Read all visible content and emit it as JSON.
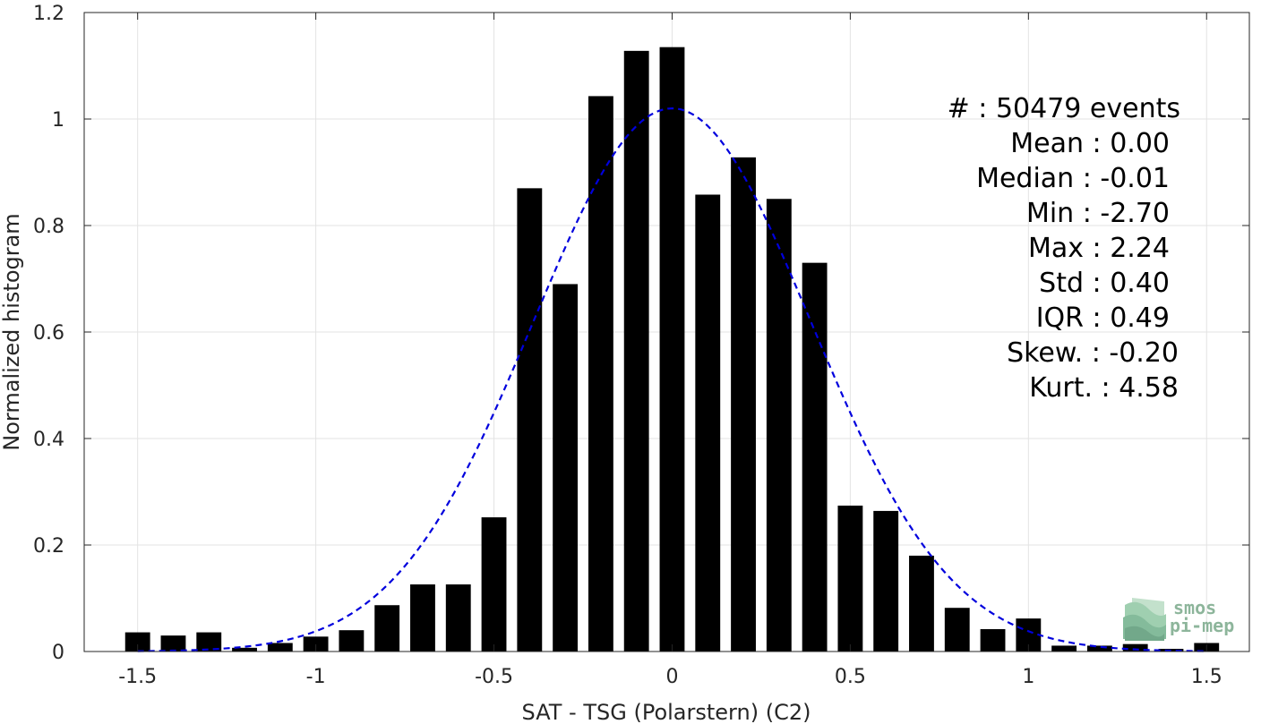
{
  "chart_data": {
    "type": "bar",
    "xlabel": "SAT - TSG (Polarstern) (C2)",
    "ylabel": "Normalized histogram",
    "xlim": [
      -1.65,
      1.62
    ],
    "ylim": [
      0,
      1.2
    ],
    "x_ticks": [
      -1.5,
      -1,
      -0.5,
      0,
      0.5,
      1,
      1.5
    ],
    "x_tick_labels": [
      "-1.5",
      "-1",
      "-0.5",
      "0",
      "0.5",
      "1",
      "1.5"
    ],
    "y_ticks": [
      0,
      0.2,
      0.4,
      0.6,
      0.8,
      1,
      1.2
    ],
    "y_tick_labels": [
      "0",
      "0.2",
      "0.4",
      "0.6",
      "0.8",
      "1",
      "1.2"
    ],
    "grid": true,
    "bar_color": "#000000",
    "bar_width": 0.07,
    "bins": [
      {
        "x": -1.5,
        "y": 0.036
      },
      {
        "x": -1.4,
        "y": 0.03
      },
      {
        "x": -1.3,
        "y": 0.036
      },
      {
        "x": -1.2,
        "y": 0.007
      },
      {
        "x": -1.1,
        "y": 0.016
      },
      {
        "x": -1.0,
        "y": 0.028
      },
      {
        "x": -0.9,
        "y": 0.04
      },
      {
        "x": -0.8,
        "y": 0.087
      },
      {
        "x": -0.7,
        "y": 0.126
      },
      {
        "x": -0.6,
        "y": 0.126
      },
      {
        "x": -0.5,
        "y": 0.252
      },
      {
        "x": -0.4,
        "y": 0.87
      },
      {
        "x": -0.3,
        "y": 0.69
      },
      {
        "x": -0.2,
        "y": 1.043
      },
      {
        "x": -0.1,
        "y": 1.128
      },
      {
        "x": 0.0,
        "y": 1.135
      },
      {
        "x": 0.1,
        "y": 0.858
      },
      {
        "x": 0.2,
        "y": 0.928
      },
      {
        "x": 0.3,
        "y": 0.85
      },
      {
        "x": 0.4,
        "y": 0.73
      },
      {
        "x": 0.5,
        "y": 0.274
      },
      {
        "x": 0.6,
        "y": 0.264
      },
      {
        "x": 0.7,
        "y": 0.18
      },
      {
        "x": 0.8,
        "y": 0.082
      },
      {
        "x": 0.9,
        "y": 0.042
      },
      {
        "x": 1.0,
        "y": 0.062
      },
      {
        "x": 1.1,
        "y": 0.011
      },
      {
        "x": 1.2,
        "y": 0.011
      },
      {
        "x": 1.3,
        "y": 0.014
      },
      {
        "x": 1.4,
        "y": 0.005
      },
      {
        "x": 1.5,
        "y": 0.016
      }
    ],
    "fit_curve": {
      "style": "dashed",
      "color": "#0000dd",
      "mean": 0.0,
      "std": 0.39,
      "peak": 1.02,
      "x_range": [
        -1.5,
        1.5
      ]
    }
  },
  "stats": [
    {
      "label": "#  : 50479 events"
    },
    {
      "label": "Mean : 0.00"
    },
    {
      "label": "Median : -0.01"
    },
    {
      "label": "Min : -2.70"
    },
    {
      "label": "Max : 2.24"
    },
    {
      "label": "Std : 0.40"
    },
    {
      "label": "IQR : 0.49"
    },
    {
      "label": "Skew. : -0.20"
    },
    {
      "label": "Kurt. : 4.58"
    }
  ],
  "logo": {
    "line1": "smos",
    "line2": "pi-mep",
    "icon": "wave-logo-icon"
  }
}
